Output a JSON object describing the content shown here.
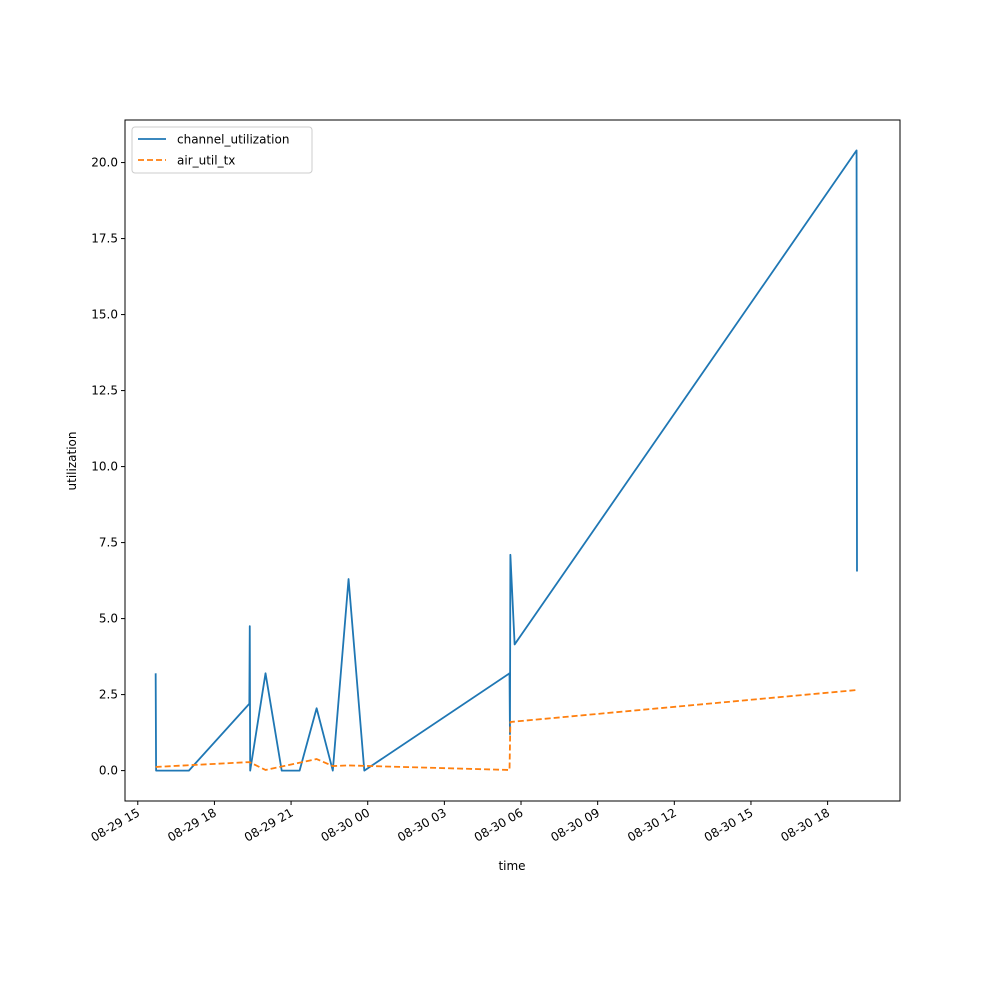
{
  "chart_data": {
    "type": "line",
    "title": "",
    "xlabel": "time",
    "ylabel": "utilization",
    "xlim": [
      "2019-08-29 14:30",
      "2019-08-30 20:50"
    ],
    "ylim": [
      -1.0,
      21.4
    ],
    "grid": false,
    "legend_position": "upper-left",
    "x_ticks": [
      {
        "value": "2019-08-29 15:00",
        "label": "08-29 15"
      },
      {
        "value": "2019-08-29 18:00",
        "label": "08-29 18"
      },
      {
        "value": "2019-08-29 21:00",
        "label": "08-29 21"
      },
      {
        "value": "2019-08-30 00:00",
        "label": "08-30 00"
      },
      {
        "value": "2019-08-30 03:00",
        "label": "08-30 03"
      },
      {
        "value": "2019-08-30 06:00",
        "label": "08-30 06"
      },
      {
        "value": "2019-08-30 09:00",
        "label": "08-30 09"
      },
      {
        "value": "2019-08-30 12:00",
        "label": "08-30 12"
      },
      {
        "value": "2019-08-30 15:00",
        "label": "08-30 15"
      },
      {
        "value": "2019-08-30 18:00",
        "label": "08-30 18"
      }
    ],
    "y_ticks": [
      {
        "value": 0.0,
        "label": "0.0"
      },
      {
        "value": 2.5,
        "label": "2.5"
      },
      {
        "value": 5.0,
        "label": "5.0"
      },
      {
        "value": 7.5,
        "label": "7.5"
      },
      {
        "value": 10.0,
        "label": "10.0"
      },
      {
        "value": 12.5,
        "label": "12.5"
      },
      {
        "value": 15.0,
        "label": "15.0"
      },
      {
        "value": 17.5,
        "label": "17.5"
      },
      {
        "value": 20.0,
        "label": "20.0"
      }
    ],
    "series": [
      {
        "name": "channel_utilization",
        "color": "#1f77b4",
        "style": "solid",
        "points": [
          {
            "x": "2019-08-29 15:42",
            "y": 3.2
          },
          {
            "x": "2019-08-29 15:43",
            "y": 0.0
          },
          {
            "x": "2019-08-29 17:00",
            "y": 0.0
          },
          {
            "x": "2019-08-29 19:22",
            "y": 2.2
          },
          {
            "x": "2019-08-29 19:23",
            "y": 4.75
          },
          {
            "x": "2019-08-29 19:24",
            "y": 0.0
          },
          {
            "x": "2019-08-29 20:00",
            "y": 3.2
          },
          {
            "x": "2019-08-29 20:38",
            "y": 0.0
          },
          {
            "x": "2019-08-29 21:20",
            "y": 0.0
          },
          {
            "x": "2019-08-29 22:00",
            "y": 2.05
          },
          {
            "x": "2019-08-29 22:38",
            "y": 0.0
          },
          {
            "x": "2019-08-29 23:15",
            "y": 6.3
          },
          {
            "x": "2019-08-29 23:52",
            "y": 0.0
          },
          {
            "x": "2019-08-30 05:33",
            "y": 3.2
          },
          {
            "x": "2019-08-30 05:34",
            "y": 1.2
          },
          {
            "x": "2019-08-30 05:35",
            "y": 7.1
          },
          {
            "x": "2019-08-30 05:45",
            "y": 4.15
          },
          {
            "x": "2019-08-30 19:08",
            "y": 20.4
          },
          {
            "x": "2019-08-30 19:09",
            "y": 6.55
          }
        ]
      },
      {
        "name": "air_util_tx",
        "color": "#ff7f0e",
        "style": "dashed",
        "points": [
          {
            "x": "2019-08-29 15:42",
            "y": 0.12
          },
          {
            "x": "2019-08-29 19:22",
            "y": 0.28
          },
          {
            "x": "2019-08-29 20:00",
            "y": 0.02
          },
          {
            "x": "2019-08-29 22:00",
            "y": 0.38
          },
          {
            "x": "2019-08-29 22:38",
            "y": 0.15
          },
          {
            "x": "2019-08-29 23:15",
            "y": 0.17
          },
          {
            "x": "2019-08-30 05:33",
            "y": 0.02
          },
          {
            "x": "2019-08-30 05:35",
            "y": 1.6
          },
          {
            "x": "2019-08-30 19:08",
            "y": 2.65
          },
          {
            "x": "2019-08-30 19:09",
            "y": 2.6
          }
        ]
      }
    ]
  }
}
